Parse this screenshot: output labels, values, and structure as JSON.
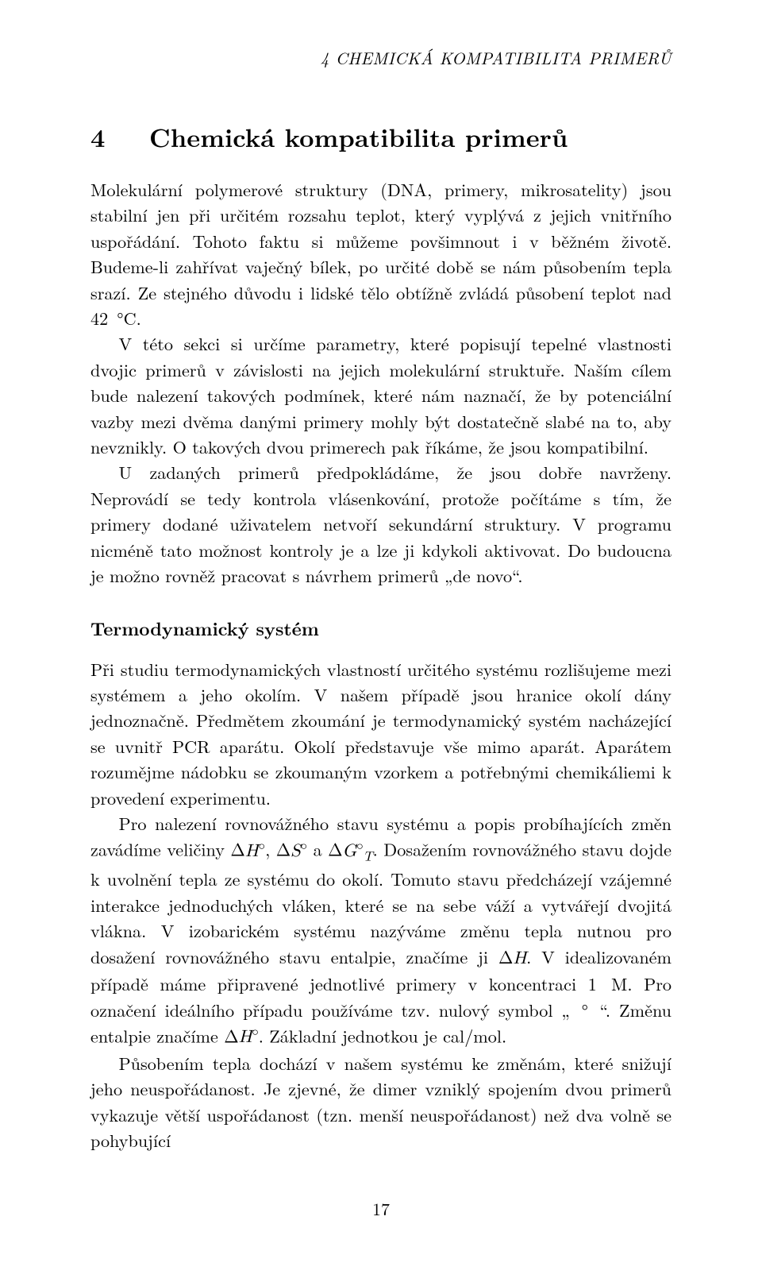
{
  "runningHeader": "4   CHEMICKÁ KOMPATIBILITA PRIMERŮ",
  "sectionNumber": "4",
  "sectionTitle": "Chemická kompatibilita primerů",
  "para1": "Molekulární polymerové struktury (DNA, primery, mikrosatelity) jsou stabilní jen při určitém rozsahu teplot, který vyplývá z jejich vnitřního uspořádání. Tohoto faktu si můžeme povšimnout i v běžném životě. Budeme-li zahřívat vaječný bílek, po určité době se nám působením tepla srazí. Ze stejného důvodu i lidské tělo obtížně zvládá působení teplot nad 42 °C.",
  "para2": "V této sekci si určíme parametry, které popisují tepelné vlastnosti dvojic primerů v závislosti na jejich molekulární struktuře. Naším cílem bude nalezení takových podmínek, které nám naznačí, že by potenciální vazby mezi dvěma danými primery mohly být dostatečně slabé na to, aby nevznikly. O takových dvou primerech pak říkáme, že jsou kompatibilní.",
  "para3": "U zadaných primerů předpokládáme, že jsou dobře navrženy. Neprovádí se tedy kontrola vlásenkování, protože počítáme s tím, že primery dodané uživatelem netvoří sekundární struktury. V programu nicméně tato možnost kontroly je a lze ji kdykoli aktivovat. Do budoucna je možno rovněž pracovat s návrhem primerů „de novo“.",
  "subsectionTitle": "Termodynamický systém",
  "para4": "Při studiu termodynamických vlastností určitého systému rozlišujeme mezi systémem a jeho okolím. V našem případě jsou hranice okolí dány jednoznačně. Předmětem zkoumání je termodynamický systém nacházející se uvnitř PCR aparátu. Okolí představuje vše mimo aparát. Aparátem rozumějme nádobku se zkoumaným vzorkem a potřebnými chemikáliemi k provedení experimentu.",
  "para5_a": "Pro nalezení rovnovážného stavu systému a popis probíhajících změn zavádíme veličiny Δ",
  "para5_b": ", Δ",
  "para5_c": " a Δ",
  "para5_d": ". Dosažením rovnovážného stavu dojde k uvolnění tepla ze systému do okolí. Tomuto stavu předcházejí vzájemné interakce jednoduchých vláken, které se na sebe váží a vytvářejí dvojitá vlákna. V izobarickém systému nazýváme změnu tepla nutnou pro dosažení rovnovážného stavu entalpie, značíme ji Δ",
  "para5_e": ". V idealizovaném případě máme připravené jednotlivé primery v koncentraci 1 M. Pro označení ideálního případu používáme tzv. nulový symbol „ ° “. Změnu entalpie značíme Δ",
  "para5_f": ". Základní jednotkou je cal/mol.",
  "sym_H": "H",
  "sym_S": "S",
  "sym_G": "G",
  "sym_T": "T",
  "sym_circ": "◦",
  "para6": "Působením tepla dochází v našem systému ke změnám, které snižují jeho neuspořádanost. Je zjevné, že dimer vzniklý spojením dvou primerů vykazuje větší uspořádanost (tzn. menší neuspořádanost) než dva volně se pohybující",
  "pageNumber": "17"
}
